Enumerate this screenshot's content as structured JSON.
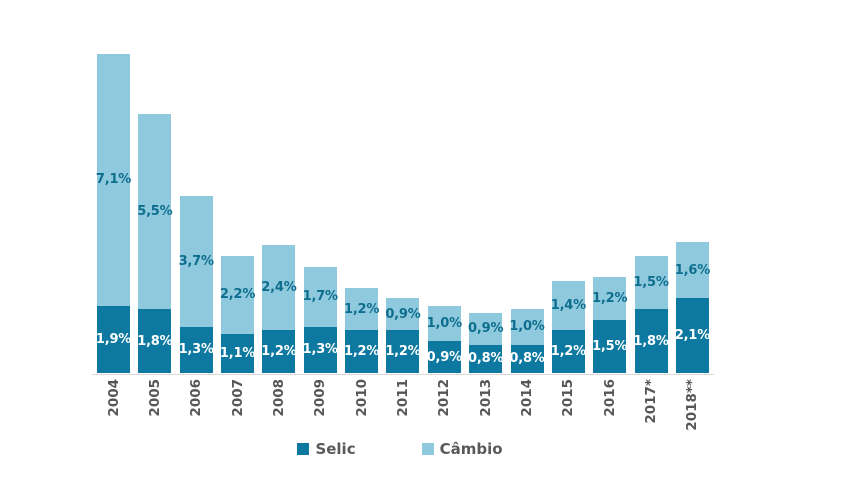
{
  "chart_data": {
    "type": "bar",
    "stacked": true,
    "title": "",
    "xlabel": "",
    "ylabel": "",
    "grid": false,
    "ylim": [
      0,
      9.5
    ],
    "categories": [
      "2004",
      "2005",
      "2006",
      "2007",
      "2008",
      "2009",
      "2010",
      "2011",
      "2012",
      "2013",
      "2014",
      "2015",
      "2016",
      "2017*",
      "2018**"
    ],
    "series": [
      {
        "name": "Selic",
        "color": "#0e79a0",
        "values": [
          1.9,
          1.8,
          1.3,
          1.1,
          1.2,
          1.3,
          1.2,
          1.2,
          0.9,
          0.8,
          0.8,
          1.2,
          1.5,
          1.8,
          2.1
        ],
        "labels": [
          "1,9%",
          "1,8%",
          "1,3%",
          "1,1%",
          "1,2%",
          "1,3%",
          "1,2%",
          "1,2%",
          "0,9%",
          "0,8%",
          "0,8%",
          "1,2%",
          "1,5%",
          "1,8%",
          "2,1%"
        ],
        "label_color": "#ffffff"
      },
      {
        "name": "Câmbio",
        "color": "#8ec9de",
        "values": [
          7.1,
          5.5,
          3.7,
          2.2,
          2.4,
          1.7,
          1.2,
          0.9,
          1.0,
          0.9,
          1.0,
          1.4,
          1.2,
          1.5,
          1.6
        ],
        "labels": [
          "7,1%",
          "5,5%",
          "3,7%",
          "2,2%",
          "2,4%",
          "1,7%",
          "1,2%",
          "0,9%",
          "1,0%",
          "0,9%",
          "1,0%",
          "1,4%",
          "1,2%",
          "1,5%",
          "1,6%"
        ],
        "label_color": "#0e6e8e"
      }
    ],
    "legend": {
      "position": "bottom",
      "entries": [
        "Selic",
        "Câmbio"
      ]
    },
    "axis_label_color": "#565656",
    "legend_text_color": "#595959",
    "baseline_color": "#d8d8d8"
  }
}
